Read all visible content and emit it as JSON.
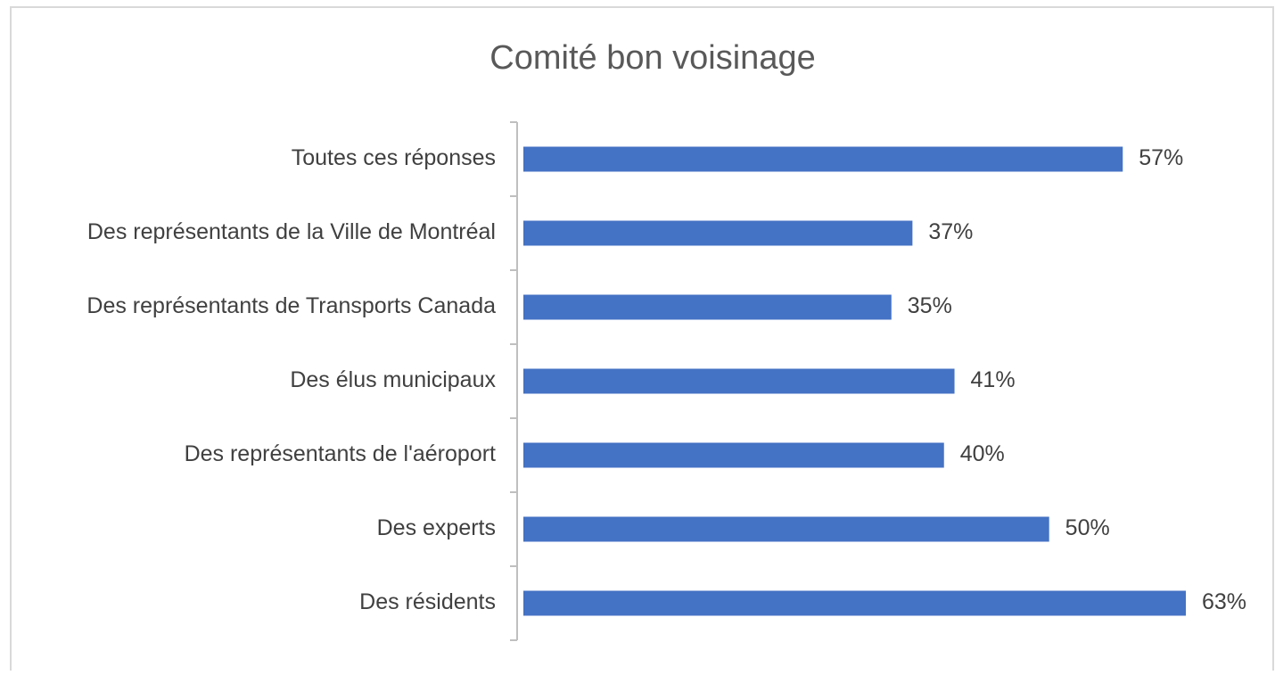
{
  "chart_data": {
    "type": "bar",
    "orientation": "horizontal",
    "title": "Comité bon voisinage",
    "categories": [
      "Toutes ces réponses",
      "Des représentants de la Ville de Montréal",
      "Des représentants de Transports Canada",
      "Des élus municipaux",
      "Des représentants de l'aéroport",
      "Des experts",
      "Des résidents"
    ],
    "values": [
      57,
      37,
      35,
      41,
      40,
      50,
      63
    ],
    "value_labels": [
      "57%",
      "37%",
      "35%",
      "41%",
      "40%",
      "50%",
      "63%"
    ],
    "color": "#4472c4"
  }
}
